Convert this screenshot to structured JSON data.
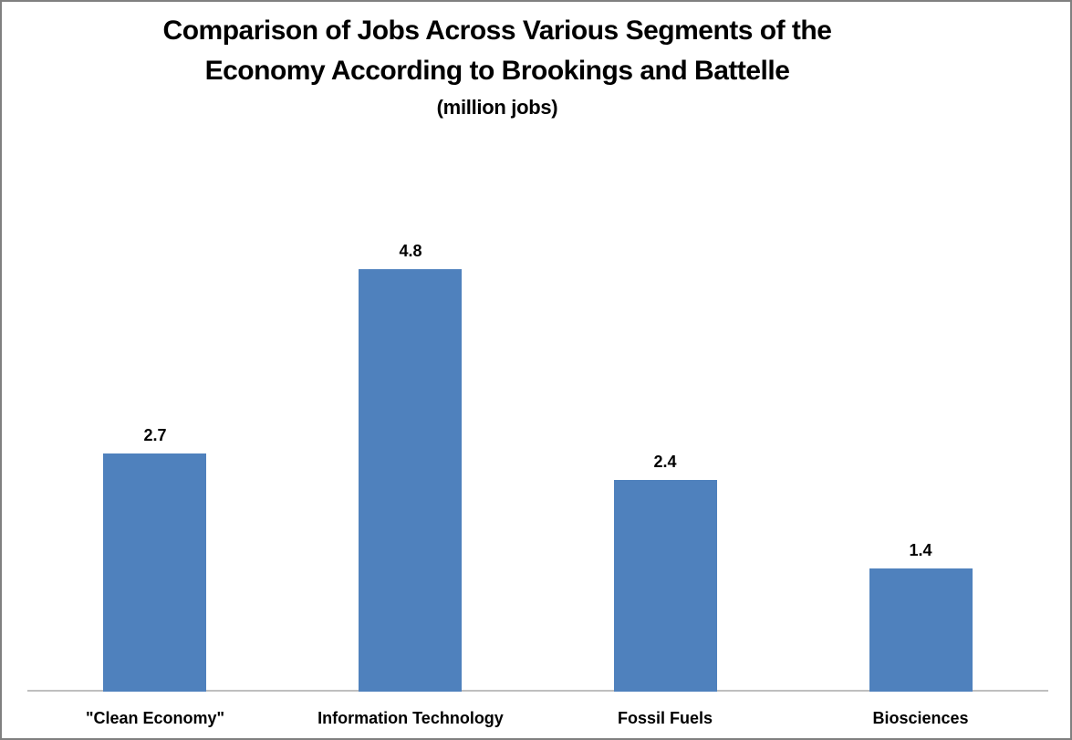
{
  "chart_data": {
    "type": "bar",
    "title": "Comparison of Jobs Across Various Segments of the Economy According to Brookings and Battelle",
    "title_lines": [
      "Comparison of Jobs Across Various Segments of the",
      "Economy According to Brookings and Battelle"
    ],
    "subtitle": "(million jobs)",
    "categories": [
      "\"Clean Economy\"",
      "Information Technology",
      "Fossil Fuels",
      "Biosciences"
    ],
    "values": [
      2.7,
      4.8,
      2.4,
      1.4
    ],
    "value_labels": [
      "2.7",
      "4.8",
      "2.4",
      "1.4"
    ],
    "xlabel": "",
    "ylabel": "",
    "ylim": [
      0,
      5
    ],
    "grid": false,
    "legend": null,
    "colors": {
      "bar": "#4F81BD",
      "axis_line": "#BFBFBF",
      "text": "#000000",
      "frame_border": "#808080",
      "background": "#FFFFFF"
    }
  }
}
